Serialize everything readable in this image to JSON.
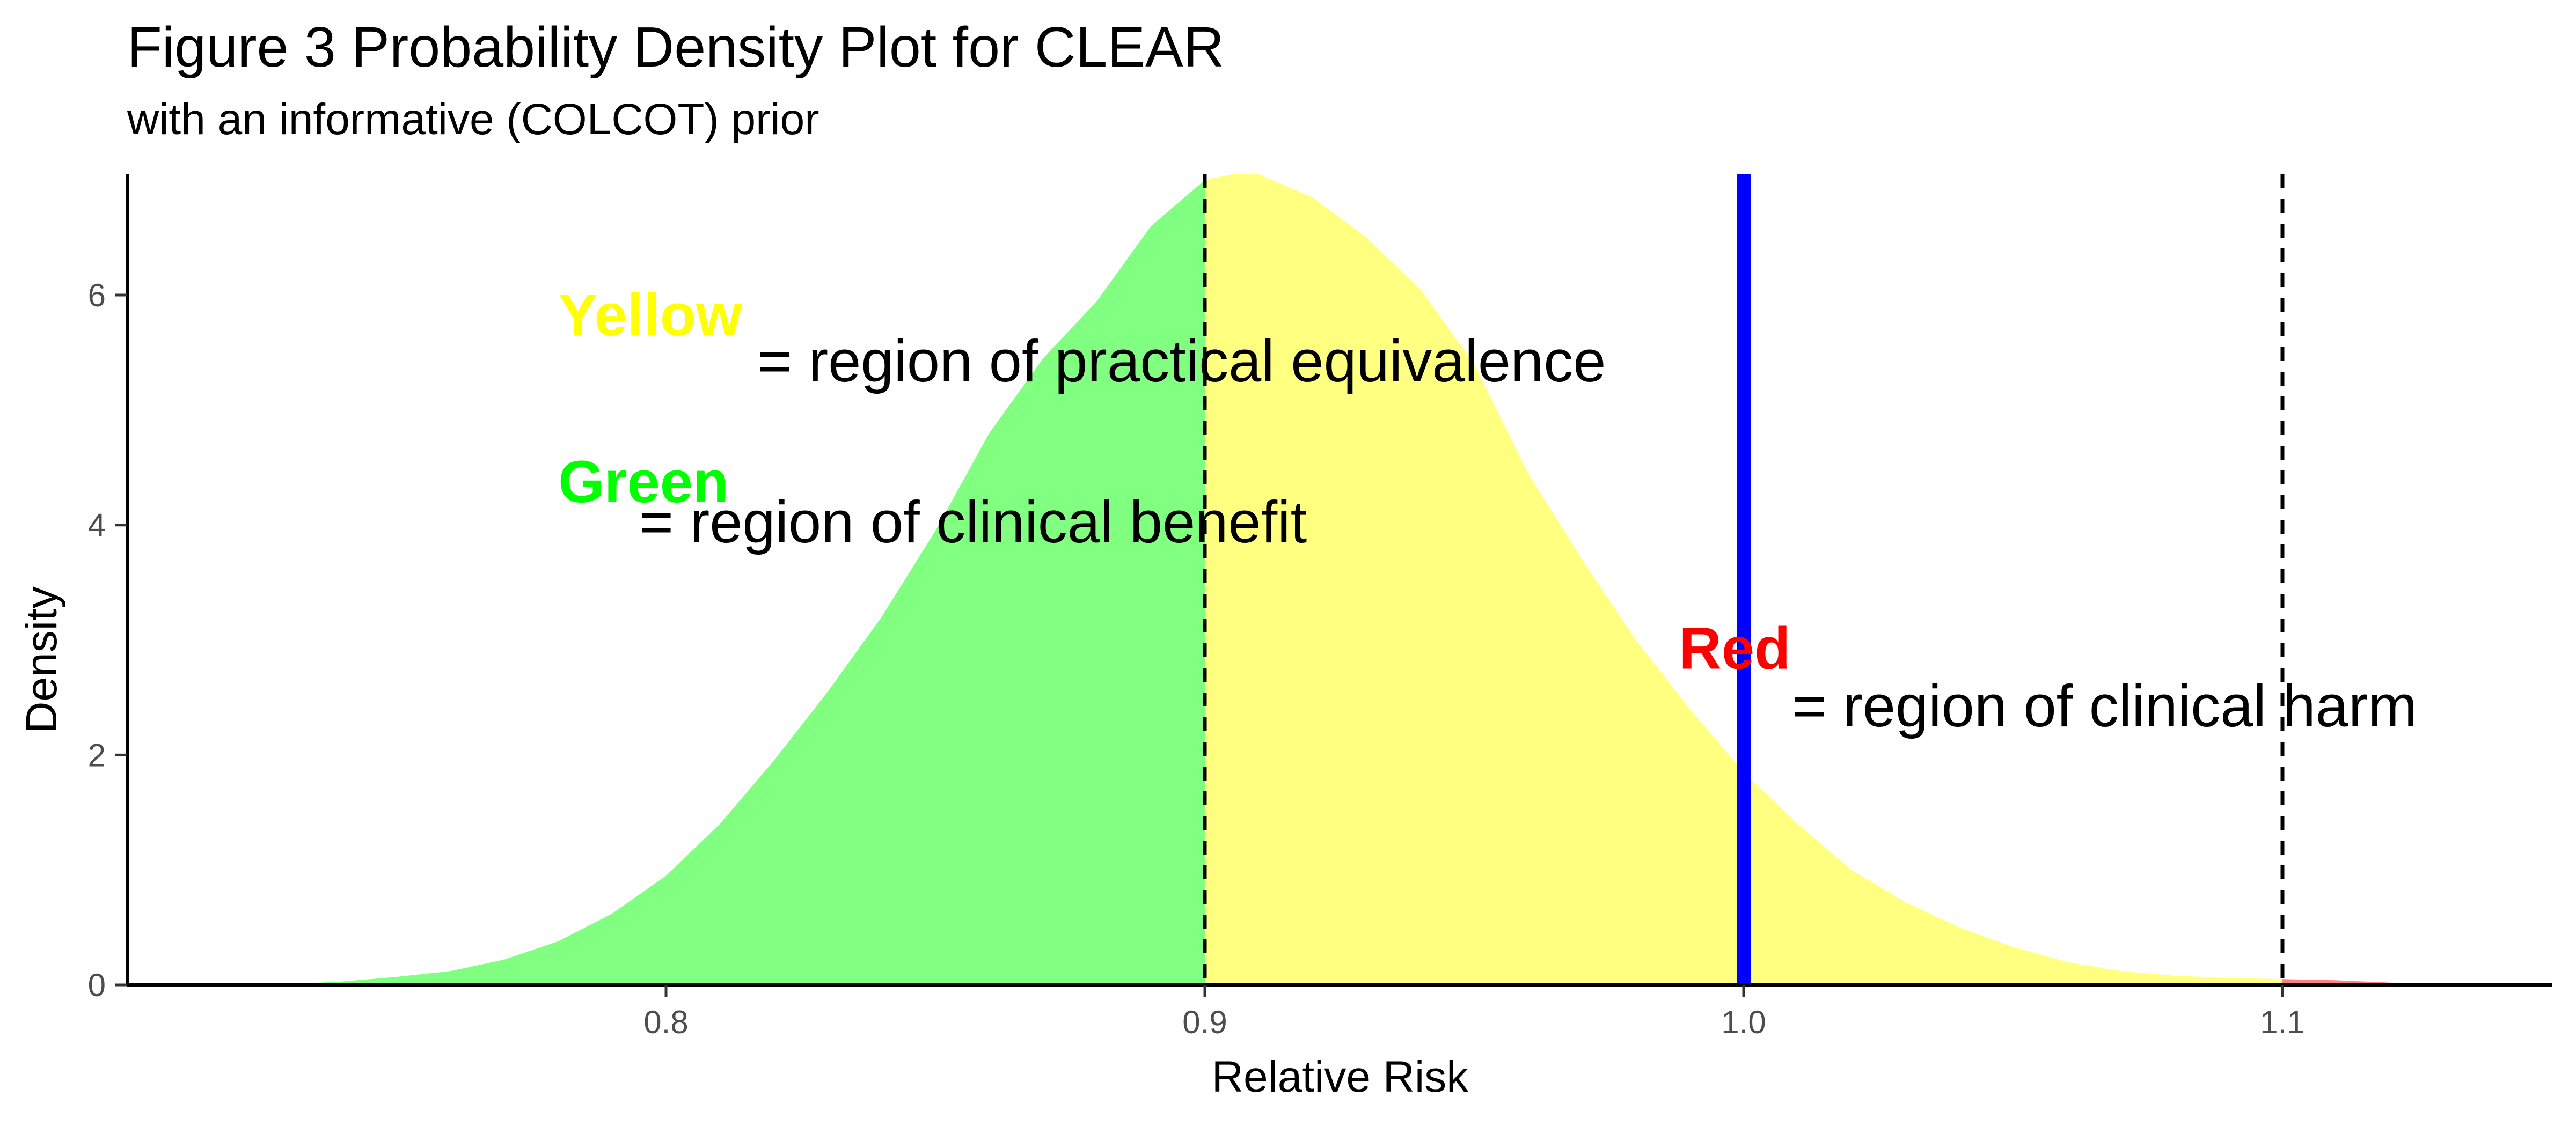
{
  "chart_data": {
    "type": "area",
    "title": "Figure 3 Probability Density Plot for CLEAR",
    "subtitle": "with an informative (COLCOT) prior",
    "xlabel": "Relative Risk",
    "ylabel": "Density",
    "xlim": [
      0.7,
      1.15
    ],
    "ylim": [
      0,
      7.05
    ],
    "x_ticks": [
      {
        "value": 0.8,
        "label": "0.8"
      },
      {
        "value": 0.9,
        "label": "0.9"
      },
      {
        "value": 1.0,
        "label": "1.0"
      },
      {
        "value": 1.1,
        "label": "1.1"
      }
    ],
    "y_ticks": [
      {
        "value": 0,
        "label": "0"
      },
      {
        "value": 2,
        "label": "2"
      },
      {
        "value": 4,
        "label": "4"
      },
      {
        "value": 6,
        "label": "6"
      }
    ],
    "grid": false,
    "density": {
      "x": [
        0.727,
        0.74,
        0.75,
        0.76,
        0.77,
        0.78,
        0.79,
        0.8,
        0.81,
        0.82,
        0.83,
        0.84,
        0.85,
        0.86,
        0.87,
        0.88,
        0.89,
        0.9,
        0.905,
        0.91,
        0.92,
        0.93,
        0.94,
        0.95,
        0.96,
        0.97,
        0.98,
        0.99,
        1.0,
        1.01,
        1.02,
        1.03,
        1.04,
        1.05,
        1.06,
        1.07,
        1.08,
        1.09,
        1.1,
        1.11,
        1.12,
        1.125
      ],
      "y": [
        0.0,
        0.03,
        0.07,
        0.12,
        0.22,
        0.38,
        0.62,
        0.95,
        1.4,
        1.95,
        2.55,
        3.2,
        3.95,
        4.8,
        5.45,
        5.95,
        6.6,
        7.0,
        7.05,
        7.05,
        6.85,
        6.5,
        6.05,
        5.4,
        4.45,
        3.7,
        3.0,
        2.4,
        1.85,
        1.4,
        1.0,
        0.72,
        0.5,
        0.33,
        0.2,
        0.12,
        0.08,
        0.06,
        0.05,
        0.04,
        0.02,
        0.0
      ]
    },
    "regions": [
      {
        "key": "Green",
        "from": 0.7,
        "to": 0.9,
        "color": "#80ff80"
      },
      {
        "key": "Yellow",
        "from": 0.9,
        "to": 1.1,
        "color": "#ffff80"
      },
      {
        "key": "Red",
        "from": 1.1,
        "to": 1.15,
        "color": "#ff8080"
      }
    ],
    "dashed_lines": [
      0.9,
      1.1
    ],
    "reference_line": {
      "x": 1.0,
      "color": "#0000ff"
    },
    "annotations": [
      {
        "label": "Yellow",
        "label_color": "#ffff00",
        "label_x": 0.78,
        "label_y": 5.65,
        "text": "= region of practical equivalence",
        "text_x": 0.817,
        "text_y": 5.25
      },
      {
        "label": "Green",
        "label_color": "#00ff00",
        "label_x": 0.78,
        "label_y": 4.2,
        "text": "= region of clinical benefit",
        "text_x": 0.795,
        "text_y": 3.85
      },
      {
        "label": "Red",
        "label_color": "#ff0000",
        "label_x": 0.988,
        "label_y": 2.75,
        "text": "= region of clinical harm",
        "text_x": 1.009,
        "text_y": 2.25
      }
    ]
  }
}
